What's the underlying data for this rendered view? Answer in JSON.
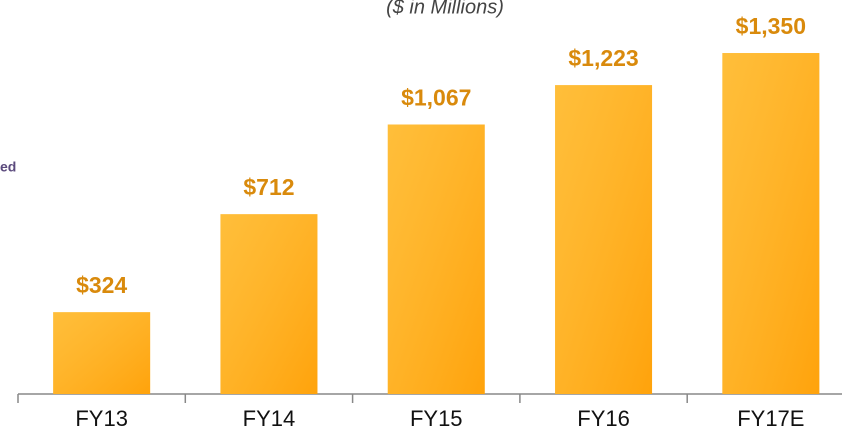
{
  "chart_data": {
    "type": "bar",
    "subtitle": "($ in Millions)",
    "annotation": "ed",
    "categories": [
      "FY13",
      "FY14",
      "FY15",
      "FY16",
      "FY17E"
    ],
    "values": [
      324,
      712,
      1067,
      1223,
      1350
    ],
    "value_labels": [
      "$324",
      "$712",
      "$1,067",
      "$1,223",
      "$1,350"
    ],
    "color": "#ffb00f",
    "label_color": "#d98a0c",
    "ylim": [
      0,
      1400
    ]
  }
}
